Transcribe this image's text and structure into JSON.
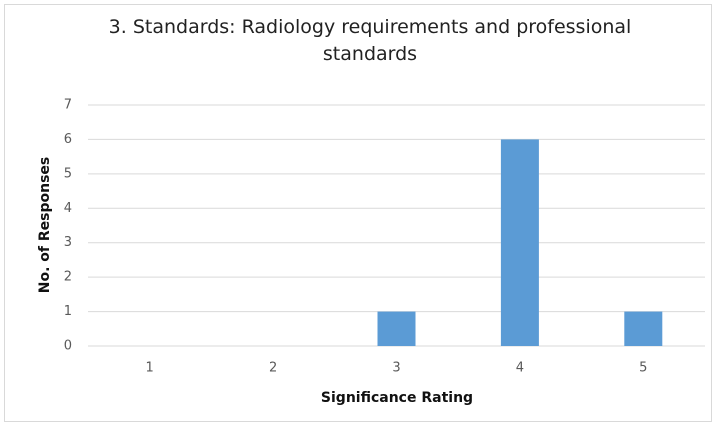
{
  "chart_data": {
    "type": "bar",
    "title": "3. Standards: Radiology requirements and professional standards",
    "x_label": "Significance Rating",
    "y_label": "No. of Responses",
    "categories": [
      "1",
      "2",
      "3",
      "4",
      "5"
    ],
    "values": [
      0,
      0,
      1,
      6,
      1
    ],
    "color": "#5b9bd5",
    "ylim": [
      0,
      7
    ],
    "yticks": [
      0,
      1,
      2,
      3,
      4,
      5,
      6,
      7
    ],
    "grid": true
  }
}
